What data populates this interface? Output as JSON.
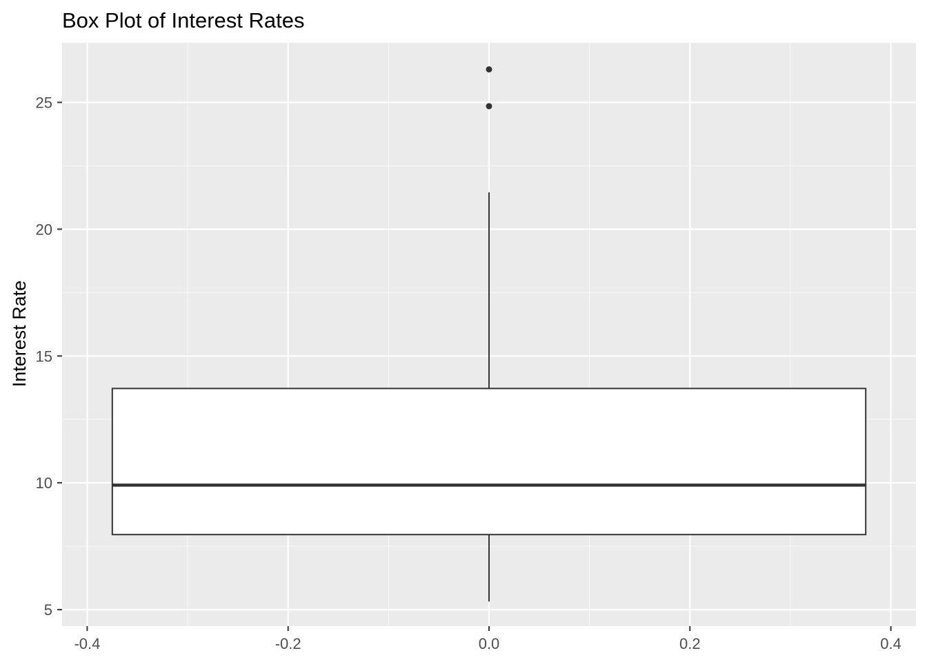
{
  "chart_data": {
    "type": "box",
    "title": "Box Plot of Interest Rates",
    "xlabel": "",
    "ylabel": "Interest Rate",
    "xlim": [
      -0.425,
      0.425
    ],
    "ylim": [
      4.35,
      27.35
    ],
    "x_ticks": [
      -0.4,
      -0.2,
      0.0,
      0.2,
      0.4
    ],
    "x_tick_labels": [
      "-0.4",
      "-0.2",
      "0.0",
      "0.2",
      "0.4"
    ],
    "y_ticks": [
      5,
      10,
      15,
      20,
      25
    ],
    "y_tick_labels": [
      "5",
      "10",
      "15",
      "20",
      "25"
    ],
    "grid": true,
    "legend": "none",
    "box": {
      "x": 0.0,
      "width": 0.75,
      "lower_whisker": 5.32,
      "q1": 7.96,
      "median": 9.91,
      "q3": 13.72,
      "upper_whisker": 21.45,
      "outliers": [
        24.85,
        26.3
      ]
    },
    "colors": {
      "panel_background": "#ebebeb",
      "grid_major": "#ffffff",
      "grid_minor": "#f7f7f7",
      "box_fill": "#ffffff",
      "box_line": "#333333",
      "tick_text": "#4d4d4d"
    }
  }
}
